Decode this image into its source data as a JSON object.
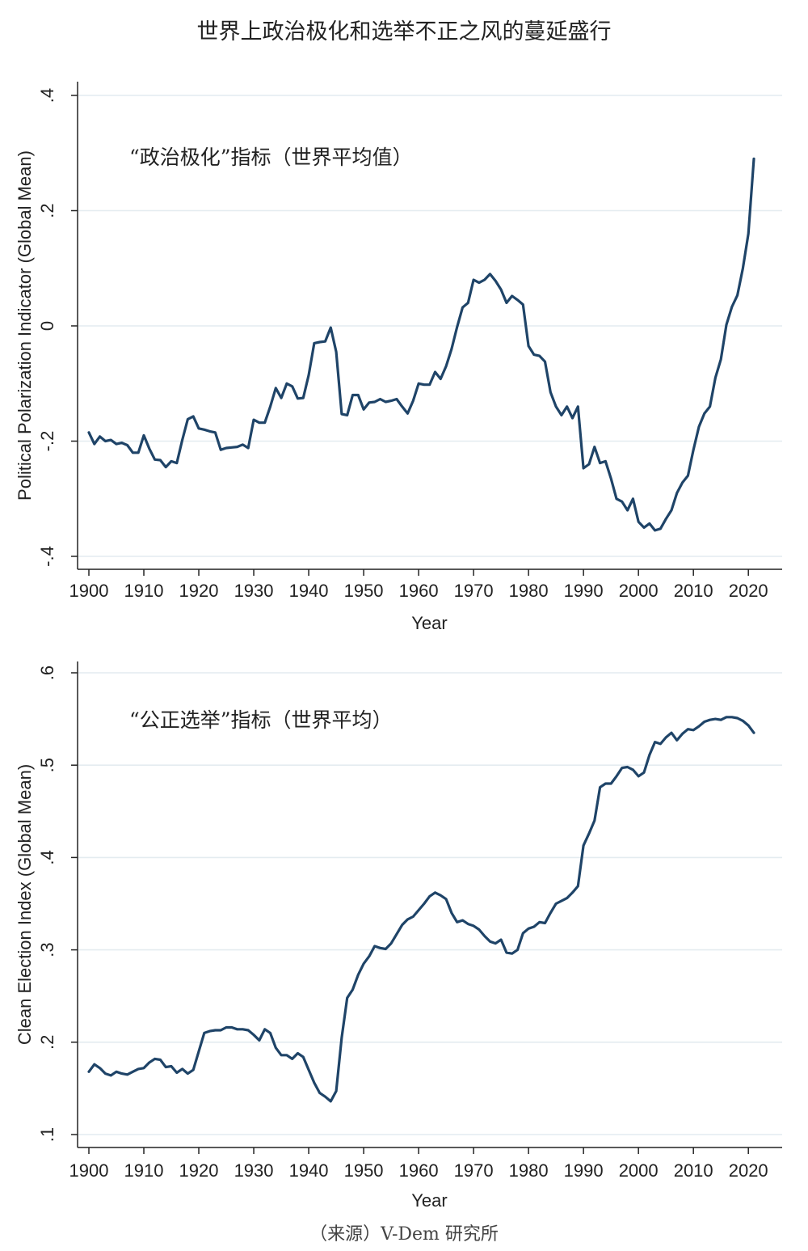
{
  "title": "世界上政治极化和选举不正之风的蔓延盛行",
  "source": "（来源）V-Dem 研究所",
  "colors": {
    "line": "#1f4468",
    "grid": "#e4ecf0",
    "axis": "#222222"
  },
  "chart_data": [
    {
      "type": "line",
      "annotation": "“政治极化”指标（世界平均值）",
      "xlabel": "Year",
      "ylabel": "Political Polarization Indicator (Global Mean)",
      "xlim": [
        1900,
        2021
      ],
      "ylim": [
        -0.4,
        0.4
      ],
      "xticks": [
        1900,
        1910,
        1920,
        1930,
        1940,
        1950,
        1960,
        1970,
        1980,
        1990,
        2000,
        2010,
        2020
      ],
      "xtick_labels": [
        "1900",
        "1910",
        "1920",
        "1930",
        "1940",
        "1950",
        "1960",
        "1970",
        "1980",
        "1990",
        "2000",
        "2010",
        "2020"
      ],
      "yticks": [
        -0.4,
        -0.2,
        0,
        0.2,
        0.4
      ],
      "ytick_labels": [
        "-.4",
        "-.2",
        "0",
        ".2",
        ".4"
      ],
      "grid": true,
      "x": [
        1900,
        1901,
        1902,
        1903,
        1904,
        1905,
        1906,
        1907,
        1908,
        1909,
        1910,
        1911,
        1912,
        1913,
        1914,
        1915,
        1916,
        1917,
        1918,
        1919,
        1920,
        1921,
        1922,
        1923,
        1924,
        1925,
        1926,
        1927,
        1928,
        1929,
        1930,
        1931,
        1932,
        1933,
        1934,
        1935,
        1936,
        1937,
        1938,
        1939,
        1940,
        1941,
        1942,
        1943,
        1944,
        1945,
        1946,
        1947,
        1948,
        1949,
        1950,
        1951,
        1952,
        1953,
        1954,
        1955,
        1956,
        1957,
        1958,
        1959,
        1960,
        1961,
        1962,
        1963,
        1964,
        1965,
        1966,
        1967,
        1968,
        1969,
        1970,
        1971,
        1972,
        1973,
        1974,
        1975,
        1976,
        1977,
        1978,
        1979,
        1980,
        1981,
        1982,
        1983,
        1984,
        1985,
        1986,
        1987,
        1988,
        1989,
        1990,
        1991,
        1992,
        1993,
        1994,
        1995,
        1996,
        1997,
        1998,
        1999,
        2000,
        2001,
        2002,
        2003,
        2004,
        2005,
        2006,
        2007,
        2008,
        2009,
        2010,
        2011,
        2012,
        2013,
        2014,
        2015,
        2016,
        2017,
        2018,
        2019,
        2020,
        2021
      ],
      "y": [
        -0.185,
        -0.205,
        -0.192,
        -0.2,
        -0.198,
        -0.205,
        -0.203,
        -0.207,
        -0.22,
        -0.22,
        -0.19,
        -0.213,
        -0.232,
        -0.233,
        -0.245,
        -0.235,
        -0.238,
        -0.198,
        -0.162,
        -0.157,
        -0.178,
        -0.18,
        -0.183,
        -0.185,
        -0.215,
        -0.212,
        -0.211,
        -0.21,
        -0.206,
        -0.212,
        -0.163,
        -0.168,
        -0.168,
        -0.14,
        -0.108,
        -0.125,
        -0.1,
        -0.105,
        -0.126,
        -0.125,
        -0.085,
        -0.03,
        -0.028,
        -0.027,
        -0.003,
        -0.045,
        -0.153,
        -0.155,
        -0.12,
        -0.12,
        -0.145,
        -0.133,
        -0.132,
        -0.127,
        -0.132,
        -0.13,
        -0.127,
        -0.14,
        -0.152,
        -0.13,
        -0.1,
        -0.102,
        -0.102,
        -0.08,
        -0.092,
        -0.07,
        -0.04,
        -0.002,
        0.032,
        0.04,
        0.08,
        0.075,
        0.08,
        0.09,
        0.078,
        0.063,
        0.04,
        0.052,
        0.045,
        0.037,
        -0.035,
        -0.05,
        -0.052,
        -0.062,
        -0.115,
        -0.14,
        -0.155,
        -0.14,
        -0.16,
        -0.14,
        -0.247,
        -0.24,
        -0.21,
        -0.238,
        -0.235,
        -0.265,
        -0.3,
        -0.305,
        -0.32,
        -0.3,
        -0.34,
        -0.35,
        -0.343,
        -0.355,
        -0.352,
        -0.335,
        -0.32,
        -0.29,
        -0.272,
        -0.26,
        -0.215,
        -0.175,
        -0.152,
        -0.14,
        -0.09,
        -0.058,
        0.002,
        0.033,
        0.053,
        0.1,
        0.16,
        0.29
      ]
    },
    {
      "type": "line",
      "annotation": "“公正选举”指标（世界平均）",
      "xlabel": "Year",
      "ylabel": "Clean Election Index (Global Mean)",
      "xlim": [
        1900,
        2021
      ],
      "ylim": [
        0.1,
        0.6
      ],
      "xticks": [
        1900,
        1910,
        1920,
        1930,
        1940,
        1950,
        1960,
        1970,
        1980,
        1990,
        2000,
        2010,
        2020
      ],
      "xtick_labels": [
        "1900",
        "1910",
        "1920",
        "1930",
        "1940",
        "1950",
        "1960",
        "1970",
        "1980",
        "1990",
        "2000",
        "2010",
        "2020"
      ],
      "yticks": [
        0.1,
        0.2,
        0.3,
        0.4,
        0.5,
        0.6
      ],
      "ytick_labels": [
        ".1",
        ".2",
        ".3",
        ".4",
        ".5",
        ".6"
      ],
      "grid": true,
      "x": [
        1900,
        1901,
        1902,
        1903,
        1904,
        1905,
        1906,
        1907,
        1908,
        1909,
        1910,
        1911,
        1912,
        1913,
        1914,
        1915,
        1916,
        1917,
        1918,
        1919,
        1920,
        1921,
        1922,
        1923,
        1924,
        1925,
        1926,
        1927,
        1928,
        1929,
        1930,
        1931,
        1932,
        1933,
        1934,
        1935,
        1936,
        1937,
        1938,
        1939,
        1940,
        1941,
        1942,
        1943,
        1944,
        1945,
        1946,
        1947,
        1948,
        1949,
        1950,
        1951,
        1952,
        1953,
        1954,
        1955,
        1956,
        1957,
        1958,
        1959,
        1960,
        1961,
        1962,
        1963,
        1964,
        1965,
        1966,
        1967,
        1968,
        1969,
        1970,
        1971,
        1972,
        1973,
        1974,
        1975,
        1976,
        1977,
        1978,
        1979,
        1980,
        1981,
        1982,
        1983,
        1984,
        1985,
        1986,
        1987,
        1988,
        1989,
        1990,
        1991,
        1992,
        1993,
        1994,
        1995,
        1996,
        1997,
        1998,
        1999,
        2000,
        2001,
        2002,
        2003,
        2004,
        2005,
        2006,
        2007,
        2008,
        2009,
        2010,
        2011,
        2012,
        2013,
        2014,
        2015,
        2016,
        2017,
        2018,
        2019,
        2020,
        2021
      ],
      "y": [
        0.168,
        0.176,
        0.172,
        0.166,
        0.164,
        0.168,
        0.166,
        0.165,
        0.168,
        0.171,
        0.172,
        0.178,
        0.182,
        0.181,
        0.173,
        0.174,
        0.167,
        0.171,
        0.166,
        0.17,
        0.19,
        0.21,
        0.212,
        0.213,
        0.213,
        0.216,
        0.216,
        0.214,
        0.214,
        0.213,
        0.208,
        0.202,
        0.214,
        0.21,
        0.194,
        0.186,
        0.186,
        0.182,
        0.188,
        0.184,
        0.17,
        0.156,
        0.145,
        0.141,
        0.136,
        0.147,
        0.205,
        0.248,
        0.257,
        0.273,
        0.285,
        0.293,
        0.304,
        0.302,
        0.301,
        0.307,
        0.317,
        0.327,
        0.333,
        0.336,
        0.343,
        0.35,
        0.358,
        0.362,
        0.359,
        0.355,
        0.34,
        0.33,
        0.332,
        0.328,
        0.326,
        0.322,
        0.315,
        0.309,
        0.307,
        0.311,
        0.297,
        0.296,
        0.3,
        0.318,
        0.323,
        0.325,
        0.33,
        0.329,
        0.34,
        0.35,
        0.353,
        0.356,
        0.362,
        0.369,
        0.413,
        0.426,
        0.44,
        0.476,
        0.48,
        0.48,
        0.488,
        0.497,
        0.498,
        0.495,
        0.488,
        0.492,
        0.511,
        0.525,
        0.523,
        0.53,
        0.535,
        0.527,
        0.534,
        0.539,
        0.538,
        0.542,
        0.547,
        0.549,
        0.55,
        0.549,
        0.552,
        0.552,
        0.551,
        0.548,
        0.543,
        0.535
      ]
    }
  ]
}
